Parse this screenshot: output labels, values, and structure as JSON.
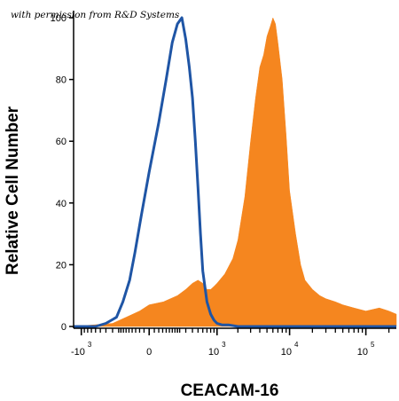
{
  "chart_data": {
    "type": "area",
    "watermark": "with permission from R&D Systems",
    "xlabel": "CEACAM-16",
    "ylabel": "Relative Cell Number",
    "xscale": "biexponential",
    "ylim": [
      0,
      100
    ],
    "grid": false,
    "y_ticks": [
      {
        "value": 0,
        "label": "0"
      },
      {
        "value": 20,
        "label": "20"
      },
      {
        "value": 40,
        "label": "40"
      },
      {
        "value": 60,
        "label": "60"
      },
      {
        "value": 80,
        "label": "80"
      },
      {
        "value": 100,
        "label": "100"
      }
    ],
    "x_ticks": [
      {
        "value": -1000,
        "base": "-10",
        "exp": "3"
      },
      {
        "value": 0,
        "base": "0",
        "exp": ""
      },
      {
        "value": 1000,
        "base": "10",
        "exp": "3"
      },
      {
        "value": 10000,
        "base": "10",
        "exp": "4"
      },
      {
        "value": 100000,
        "base": "10",
        "exp": "5"
      }
    ],
    "series": [
      {
        "style": "filled",
        "color": "#f5861f",
        "x": [
          -1300,
          -300,
          -150,
          -50,
          0,
          80,
          200,
          300,
          400,
          500,
          600,
          700,
          800,
          900,
          1000,
          1300,
          1700,
          2000,
          2500,
          3000,
          3500,
          4000,
          4500,
          5000,
          5500,
          6000,
          6500,
          7000,
          8000,
          9000,
          10000,
          12000,
          14000,
          16000,
          20000,
          25000,
          30000,
          40000,
          50000,
          70000,
          100000,
          150000,
          200000,
          250000
        ],
        "y": [
          0,
          1,
          3,
          5,
          7,
          8,
          10,
          12,
          14,
          15,
          14,
          12,
          12,
          13,
          14,
          17,
          22,
          28,
          42,
          60,
          74,
          84,
          88,
          94,
          97,
          100,
          98,
          92,
          80,
          62,
          44,
          30,
          20,
          15,
          12,
          10,
          9,
          8,
          7,
          6,
          5,
          6,
          5,
          4
        ]
      },
      {
        "style": "line",
        "color": "#1f55a5",
        "x": [
          -1300,
          -600,
          -400,
          -250,
          -180,
          -120,
          -80,
          -40,
          0,
          50,
          100,
          150,
          200,
          250,
          300,
          350,
          400,
          450,
          500,
          550,
          600,
          700,
          800,
          900,
          1000,
          1200,
          1500,
          2000,
          3000,
          5000,
          10000,
          250000
        ],
        "y": [
          0,
          0,
          1,
          3,
          8,
          15,
          24,
          36,
          50,
          66,
          80,
          92,
          98,
          100,
          93,
          84,
          74,
          60,
          45,
          30,
          18,
          8,
          4,
          2,
          1,
          0.5,
          0.5,
          0,
          0,
          0,
          0,
          0
        ]
      }
    ]
  }
}
